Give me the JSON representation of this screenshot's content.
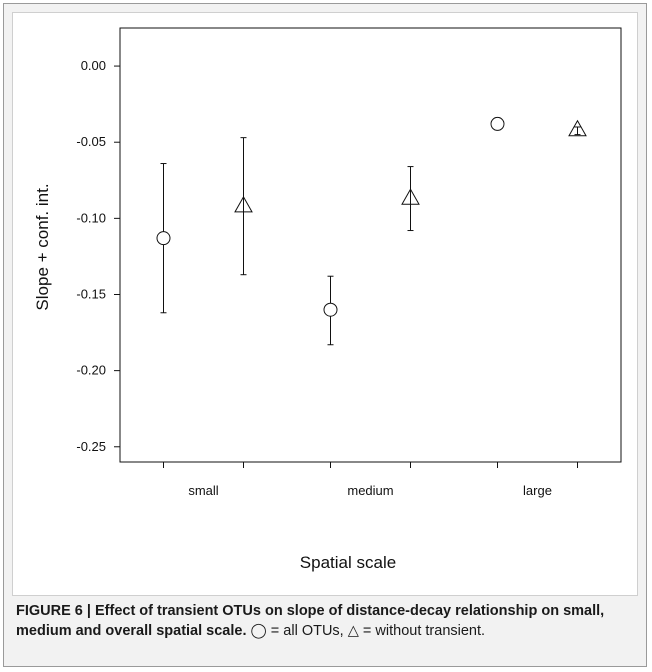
{
  "chart_data": {
    "type": "scatter",
    "xlabel": "Spatial scale",
    "ylabel": "Slope + conf. int.",
    "categories": [
      "small",
      "medium",
      "large"
    ],
    "ylim": [
      -0.26,
      0.025
    ],
    "yticks": [
      0.0,
      -0.05,
      -0.1,
      -0.15,
      -0.2,
      -0.25
    ],
    "ytick_labels": [
      "0.00",
      "-0.05",
      "-0.10",
      "-0.15",
      "-0.20",
      "-0.25"
    ],
    "grid": false,
    "series": [
      {
        "marker": "circle",
        "offset": -0.4,
        "values": [
          -0.113,
          -0.16,
          -0.038
        ],
        "lower": [
          -0.162,
          -0.183,
          -0.042
        ],
        "upper": [
          -0.064,
          -0.138,
          -0.034
        ]
      },
      {
        "marker": "triangle",
        "offset": 0.4,
        "values": [
          -0.092,
          -0.087,
          -0.042
        ],
        "lower": [
          -0.137,
          -0.108,
          -0.045
        ],
        "upper": [
          -0.047,
          -0.066,
          -0.04
        ]
      }
    ]
  },
  "caption": {
    "bold": "FIGURE 6 | Effect of transient OTUs on slope of distance-decay relationship on small, medium and overall spatial scale.",
    "circle_symbol": "◯",
    "circle_text": " = all OTUs,",
    "triangle_symbol": "△",
    "triangle_text": " = without transient."
  }
}
